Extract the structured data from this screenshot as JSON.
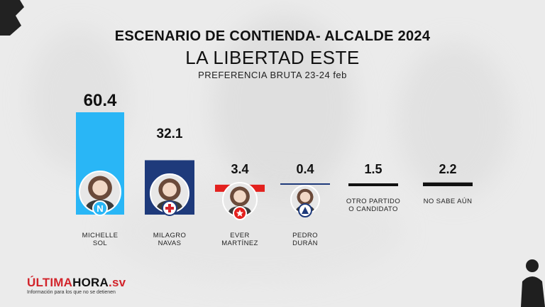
{
  "header": {
    "title": "ESCENARIO DE CONTIENDA- ALCALDE 2024",
    "subtitle": "LA LIBERTAD ESTE",
    "note": "PREFERENCIA BRUTA 23-24 feb"
  },
  "brand": {
    "name_part1": "ÚLTIMA",
    "name_part2": "HORA",
    "name_part3": ".sv",
    "tagline": "Información para los que no se detienen"
  },
  "colors": {
    "nuevas_ideas": "#29b6f6",
    "arena": "#1e3a7b",
    "fmln": "#e3211e",
    "other": "#111111"
  },
  "chart_data": {
    "type": "bar",
    "title": "ESCENARIO DE CONTIENDA- ALCALDE 2024",
    "ylim": [
      0,
      60.4
    ],
    "categories": [
      "MICHELLE SOL",
      "MILAGRO NAVAS",
      "EVER MARTÍNEZ",
      "PEDRO DURÁN",
      "OTRO PARTIDO O CANDIDATO",
      "NO SABE AÚN"
    ],
    "label_lines": [
      [
        "MICHELLE",
        "SOL"
      ],
      [
        "MILAGRO",
        "NAVAS"
      ],
      [
        "EVER",
        "MARTÍNEZ"
      ],
      [
        "PEDRO",
        "DURÁN"
      ],
      [
        "OTRO PARTIDO",
        "O CANDIDATO"
      ],
      [
        "NO SABE AÚN"
      ]
    ],
    "values": [
      60.4,
      32.1,
      3.4,
      0.4,
      1.5,
      2.2
    ],
    "value_labels": [
      "60.4",
      "32.1",
      "3.4",
      "0.4",
      "1.5",
      "2.2"
    ],
    "bar_colors": [
      "#29b6f6",
      "#1e3a7b",
      "#e3211e",
      "#1e3a7b",
      "#111111",
      "#111111"
    ],
    "party_badges": [
      "N",
      "arena-icon",
      "fmln-icon",
      "nuestro-tiempo-icon",
      "",
      ""
    ]
  }
}
